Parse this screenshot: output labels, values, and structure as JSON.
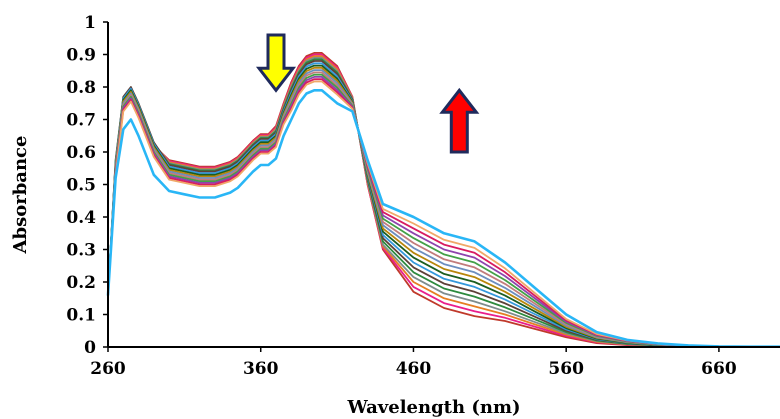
{
  "chart_data": {
    "type": "line",
    "xlabel": "Wavelength (nm)",
    "ylabel": "Absorbance",
    "xlim": [
      260,
      700
    ],
    "ylim": [
      0,
      1
    ],
    "x_ticks": [
      260,
      360,
      460,
      560,
      660
    ],
    "y_ticks": [
      0,
      0.1,
      0.2,
      0.3,
      0.4,
      0.5,
      0.6,
      0.7,
      0.8,
      0.9,
      1
    ],
    "y_tick_labels": [
      "0",
      "0.1",
      "0.2",
      "0.3",
      "0.4",
      "0.5",
      "0.6",
      "0.7",
      "0.8",
      "0.9",
      "1"
    ],
    "grid": false,
    "legend": "none",
    "annotations": [
      {
        "type": "arrow-down",
        "x": 370,
        "y_top": 0.96,
        "y_bottom": 0.79,
        "color": "#ffff00",
        "outline": "#1f2a5c"
      },
      {
        "type": "arrow-up",
        "x": 490,
        "y_top": 0.79,
        "y_bottom": 0.6,
        "color": "#ff0000",
        "outline": "#1f2a5c"
      }
    ],
    "x": [
      260,
      265,
      270,
      275,
      280,
      290,
      300,
      310,
      320,
      330,
      340,
      345,
      350,
      355,
      360,
      365,
      370,
      375,
      380,
      385,
      390,
      395,
      400,
      410,
      420,
      430,
      440,
      460,
      480,
      500,
      520,
      540,
      560,
      580,
      600,
      620,
      640,
      660,
      680,
      700
    ],
    "series": [
      {
        "color": "#c0392b",
        "values": [
          0.16,
          0.55,
          0.76,
          0.79,
          0.74,
          0.62,
          0.575,
          0.565,
          0.555,
          0.555,
          0.57,
          0.585,
          0.61,
          0.635,
          0.655,
          0.655,
          0.68,
          0.75,
          0.815,
          0.865,
          0.895,
          0.905,
          0.905,
          0.865,
          0.77,
          0.5,
          0.3,
          0.17,
          0.12,
          0.095,
          0.08,
          0.055,
          0.03,
          0.012,
          0.006,
          0.003,
          0.002,
          0.001,
          0.001,
          0.001
        ]
      },
      {
        "color": "#e91e8c",
        "values": [
          0.16,
          0.555,
          0.762,
          0.792,
          0.742,
          0.622,
          0.572,
          0.562,
          0.552,
          0.552,
          0.567,
          0.582,
          0.607,
          0.632,
          0.652,
          0.652,
          0.676,
          0.746,
          0.81,
          0.86,
          0.89,
          0.9,
          0.9,
          0.86,
          0.768,
          0.5,
          0.305,
          0.185,
          0.135,
          0.11,
          0.09,
          0.062,
          0.034,
          0.014,
          0.007,
          0.004,
          0.002,
          0.001,
          0.001,
          0.001
        ]
      },
      {
        "color": "#e67e22",
        "values": [
          0.16,
          0.56,
          0.764,
          0.794,
          0.744,
          0.624,
          0.569,
          0.559,
          0.549,
          0.549,
          0.564,
          0.579,
          0.604,
          0.629,
          0.649,
          0.649,
          0.672,
          0.742,
          0.805,
          0.855,
          0.885,
          0.895,
          0.895,
          0.855,
          0.766,
          0.505,
          0.31,
          0.2,
          0.15,
          0.125,
          0.1,
          0.069,
          0.038,
          0.016,
          0.008,
          0.004,
          0.002,
          0.001,
          0.001,
          0.001
        ]
      },
      {
        "color": "#7f8c8d",
        "values": [
          0.16,
          0.565,
          0.766,
          0.796,
          0.746,
          0.626,
          0.566,
          0.556,
          0.546,
          0.546,
          0.561,
          0.576,
          0.601,
          0.626,
          0.646,
          0.646,
          0.668,
          0.738,
          0.8,
          0.85,
          0.88,
          0.89,
          0.89,
          0.85,
          0.764,
          0.51,
          0.315,
          0.215,
          0.165,
          0.14,
          0.11,
          0.076,
          0.042,
          0.018,
          0.009,
          0.004,
          0.002,
          0.001,
          0.001,
          0.001
        ]
      },
      {
        "color": "#2d8a3e",
        "values": [
          0.16,
          0.57,
          0.768,
          0.798,
          0.748,
          0.628,
          0.563,
          0.553,
          0.543,
          0.543,
          0.558,
          0.573,
          0.598,
          0.623,
          0.643,
          0.643,
          0.664,
          0.734,
          0.795,
          0.845,
          0.875,
          0.885,
          0.885,
          0.845,
          0.762,
          0.515,
          0.325,
          0.23,
          0.18,
          0.155,
          0.122,
          0.084,
          0.046,
          0.02,
          0.01,
          0.005,
          0.002,
          0.001,
          0.001,
          0.001
        ]
      },
      {
        "color": "#5d4037",
        "values": [
          0.16,
          0.575,
          0.77,
          0.8,
          0.75,
          0.63,
          0.56,
          0.55,
          0.54,
          0.54,
          0.555,
          0.57,
          0.595,
          0.62,
          0.64,
          0.64,
          0.66,
          0.73,
          0.79,
          0.84,
          0.87,
          0.88,
          0.88,
          0.84,
          0.76,
          0.52,
          0.335,
          0.245,
          0.195,
          0.17,
          0.134,
          0.092,
          0.05,
          0.022,
          0.011,
          0.005,
          0.003,
          0.001,
          0.001,
          0.001
        ]
      },
      {
        "color": "#3498db",
        "values": [
          0.16,
          0.57,
          0.765,
          0.795,
          0.745,
          0.625,
          0.555,
          0.545,
          0.535,
          0.535,
          0.55,
          0.565,
          0.59,
          0.615,
          0.635,
          0.635,
          0.655,
          0.725,
          0.783,
          0.833,
          0.863,
          0.873,
          0.873,
          0.833,
          0.757,
          0.525,
          0.345,
          0.26,
          0.21,
          0.185,
          0.146,
          0.1,
          0.054,
          0.024,
          0.012,
          0.006,
          0.003,
          0.001,
          0.001,
          0.001
        ]
      },
      {
        "color": "#1b5e20",
        "values": [
          0.16,
          0.565,
          0.76,
          0.79,
          0.74,
          0.62,
          0.55,
          0.54,
          0.53,
          0.53,
          0.545,
          0.56,
          0.585,
          0.61,
          0.63,
          0.63,
          0.65,
          0.72,
          0.776,
          0.826,
          0.856,
          0.866,
          0.866,
          0.826,
          0.754,
          0.53,
          0.355,
          0.275,
          0.225,
          0.2,
          0.158,
          0.108,
          0.058,
          0.026,
          0.013,
          0.006,
          0.003,
          0.001,
          0.001,
          0.001
        ]
      },
      {
        "color": "#b8860b",
        "values": [
          0.16,
          0.56,
          0.755,
          0.785,
          0.735,
          0.615,
          0.545,
          0.535,
          0.525,
          0.525,
          0.54,
          0.555,
          0.58,
          0.605,
          0.625,
          0.625,
          0.645,
          0.715,
          0.769,
          0.819,
          0.849,
          0.859,
          0.859,
          0.819,
          0.751,
          0.535,
          0.365,
          0.29,
          0.24,
          0.215,
          0.17,
          0.116,
          0.062,
          0.028,
          0.014,
          0.007,
          0.003,
          0.001,
          0.001,
          0.001
        ]
      },
      {
        "color": "#6c8ebf",
        "values": [
          0.16,
          0.555,
          0.75,
          0.78,
          0.73,
          0.61,
          0.54,
          0.53,
          0.52,
          0.52,
          0.535,
          0.55,
          0.575,
          0.6,
          0.62,
          0.62,
          0.64,
          0.71,
          0.762,
          0.812,
          0.842,
          0.852,
          0.852,
          0.812,
          0.748,
          0.54,
          0.375,
          0.305,
          0.255,
          0.23,
          0.182,
          0.124,
          0.066,
          0.03,
          0.015,
          0.007,
          0.003,
          0.001,
          0.001,
          0.001
        ]
      },
      {
        "color": "#c27c7c",
        "values": [
          0.16,
          0.55,
          0.745,
          0.775,
          0.725,
          0.605,
          0.535,
          0.525,
          0.515,
          0.515,
          0.53,
          0.545,
          0.57,
          0.595,
          0.615,
          0.615,
          0.635,
          0.705,
          0.755,
          0.805,
          0.835,
          0.845,
          0.845,
          0.805,
          0.745,
          0.545,
          0.385,
          0.32,
          0.27,
          0.245,
          0.194,
          0.132,
          0.07,
          0.032,
          0.016,
          0.008,
          0.004,
          0.002,
          0.001,
          0.001
        ]
      },
      {
        "color": "#43a047",
        "values": [
          0.16,
          0.545,
          0.74,
          0.77,
          0.72,
          0.6,
          0.53,
          0.52,
          0.51,
          0.51,
          0.525,
          0.54,
          0.565,
          0.59,
          0.61,
          0.61,
          0.63,
          0.7,
          0.748,
          0.798,
          0.828,
          0.838,
          0.838,
          0.798,
          0.742,
          0.55,
          0.395,
          0.335,
          0.285,
          0.26,
          0.206,
          0.14,
          0.074,
          0.034,
          0.017,
          0.008,
          0.004,
          0.002,
          0.001,
          0.001
        ]
      },
      {
        "color": "#8e44ad",
        "values": [
          0.16,
          0.54,
          0.735,
          0.765,
          0.715,
          0.595,
          0.525,
          0.515,
          0.505,
          0.505,
          0.52,
          0.535,
          0.56,
          0.585,
          0.605,
          0.605,
          0.625,
          0.695,
          0.741,
          0.791,
          0.821,
          0.831,
          0.831,
          0.791,
          0.739,
          0.555,
          0.405,
          0.35,
          0.3,
          0.275,
          0.218,
          0.148,
          0.078,
          0.036,
          0.018,
          0.009,
          0.004,
          0.002,
          0.001,
          0.001
        ]
      },
      {
        "color": "#d81b60",
        "values": [
          0.16,
          0.535,
          0.73,
          0.76,
          0.71,
          0.59,
          0.52,
          0.51,
          0.5,
          0.5,
          0.515,
          0.53,
          0.555,
          0.58,
          0.6,
          0.6,
          0.62,
          0.69,
          0.734,
          0.784,
          0.814,
          0.824,
          0.824,
          0.784,
          0.736,
          0.56,
          0.415,
          0.365,
          0.315,
          0.29,
          0.23,
          0.156,
          0.082,
          0.038,
          0.019,
          0.009,
          0.004,
          0.002,
          0.001,
          0.001
        ]
      },
      {
        "color": "#f0a868",
        "values": [
          0.16,
          0.53,
          0.725,
          0.755,
          0.705,
          0.585,
          0.515,
          0.505,
          0.495,
          0.495,
          0.51,
          0.525,
          0.55,
          0.575,
          0.595,
          0.595,
          0.615,
          0.685,
          0.727,
          0.777,
          0.807,
          0.817,
          0.817,
          0.777,
          0.733,
          0.565,
          0.425,
          0.38,
          0.33,
          0.305,
          0.242,
          0.164,
          0.086,
          0.04,
          0.02,
          0.01,
          0.005,
          0.002,
          0.001,
          0.001
        ]
      },
      {
        "color": "#29b6f6",
        "values": [
          0.16,
          0.52,
          0.67,
          0.7,
          0.65,
          0.53,
          0.48,
          0.47,
          0.46,
          0.46,
          0.475,
          0.49,
          0.515,
          0.54,
          0.56,
          0.56,
          0.58,
          0.65,
          0.7,
          0.75,
          0.78,
          0.79,
          0.79,
          0.75,
          0.725,
          0.575,
          0.44,
          0.4,
          0.35,
          0.325,
          0.26,
          0.18,
          0.1,
          0.046,
          0.022,
          0.011,
          0.005,
          0.002,
          0.001,
          0.001
        ]
      }
    ]
  }
}
